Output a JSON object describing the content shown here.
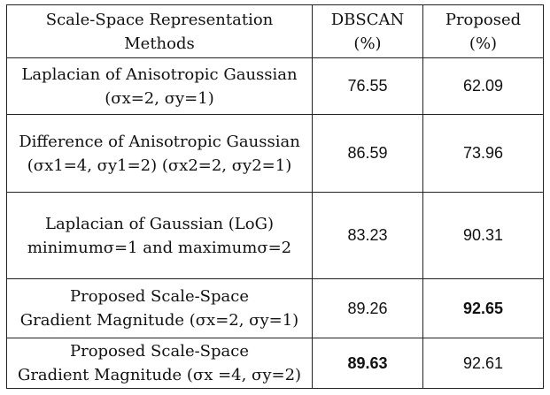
{
  "headers": {
    "method_line1": "Scale-Space Representation",
    "method_line2": "Methods",
    "dbscan_line1": "DBSCAN",
    "dbscan_line2": "(%)",
    "proposed_line1": "Proposed",
    "proposed_line2": "(%)"
  },
  "rows": [
    {
      "method_line1": "Laplacian of Anisotropic Gaussian",
      "method_line2": "(σx=2, σy=1)",
      "dbscan": "76.55",
      "proposed": "62.09"
    },
    {
      "method_line1": "Difference of Anisotropic Gaussian",
      "method_line2": "(σx1=4, σy1=2) (σx2=2, σy2=1)",
      "dbscan": "86.59",
      "proposed": "73.96"
    },
    {
      "method_line1": "Laplacian of Gaussian (LoG)",
      "method_line2": "minimumσ=1 and maximumσ=2",
      "dbscan": "83.23",
      "proposed": "90.31"
    },
    {
      "method_line1": "Proposed Scale-Space",
      "method_line2": "Gradient Magnitude (σx=2, σy=1)",
      "dbscan": "89.26",
      "proposed": "92.65"
    },
    {
      "method_line1": "Proposed Scale-Space",
      "method_line2": "Gradient Magnitude (σx =4, σy=2)",
      "dbscan": "89.63",
      "proposed": "92.61"
    }
  ],
  "emphasis_color": "#111111",
  "border_color": "#222222"
}
